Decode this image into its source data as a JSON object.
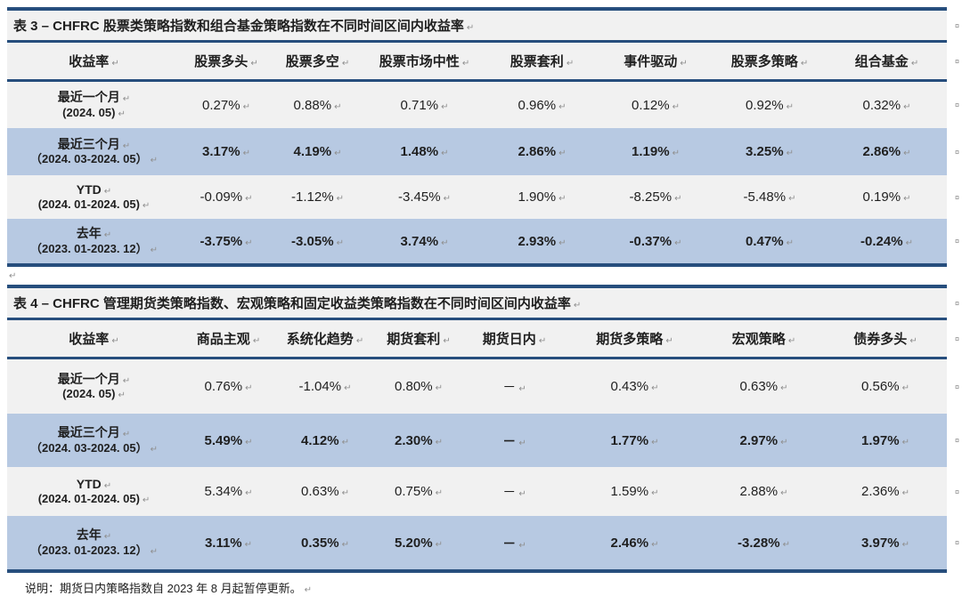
{
  "colors": {
    "border_navy": "#274e7d",
    "row_blue": "#b7c9e2",
    "row_gray": "#f1f1f1",
    "text": "#1f1f1f",
    "mark_gray": "#8f8f8f"
  },
  "marks": {
    "paragraph": "↵",
    "row_end": "¤"
  },
  "tables": [
    {
      "title": "表 3 – CHFRC 股票类策略指数和组合基金策略指数在不同时间区间内收益率",
      "columns": [
        "收益率",
        "股票多头",
        "股票多空",
        "股票市场中性",
        "股票套利",
        "事件驱动",
        "股票多策略",
        "组合基金"
      ],
      "rows": [
        {
          "label_line1": "最近一个月",
          "label_line2": "(2024. 05)",
          "bold": false,
          "values": [
            "0.27%",
            "0.88%",
            "0.71%",
            "0.96%",
            "0.12%",
            "0.92%",
            "0.32%"
          ]
        },
        {
          "label_line1": "最近三个月",
          "label_line2": "（2024. 03-2024. 05）",
          "bold": true,
          "values": [
            "3.17%",
            "4.19%",
            "1.48%",
            "2.86%",
            "1.19%",
            "3.25%",
            "2.86%"
          ]
        },
        {
          "label_line1": "YTD",
          "label_line2": "(2024. 01-2024. 05)",
          "bold": false,
          "values": [
            "-0.09%",
            "-1.12%",
            "-3.45%",
            "1.90%",
            "-8.25%",
            "-5.48%",
            "0.19%"
          ]
        },
        {
          "label_line1": "去年",
          "label_line2": "（2023. 01-2023. 12）",
          "bold": true,
          "values": [
            "-3.75%",
            "-3.05%",
            "3.74%",
            "2.93%",
            "-0.37%",
            "0.47%",
            "-0.24%"
          ]
        }
      ]
    },
    {
      "title": "表 4 – CHFRC 管理期货类策略指数、宏观策略和固定收益类策略指数在不同时间区间内收益率",
      "columns": [
        "收益率",
        "商品主观",
        "系统化趋势",
        "期货套利",
        "期货日内",
        "期货多策略",
        "宏观策略",
        "债券多头"
      ],
      "rows": [
        {
          "label_line1": "最近一个月",
          "label_line2": "(2024. 05)",
          "bold": false,
          "values": [
            "0.76%",
            "-1.04%",
            "0.80%",
            "－",
            "0.43%",
            "0.63%",
            "0.56%"
          ]
        },
        {
          "label_line1": "最近三个月",
          "label_line2": "（2024. 03-2024. 05）",
          "bold": true,
          "values": [
            "5.49%",
            "4.12%",
            "2.30%",
            "－",
            "1.77%",
            "2.97%",
            "1.97%"
          ]
        },
        {
          "label_line1": "YTD",
          "label_line2": "(2024. 01-2024. 05)",
          "bold": false,
          "values": [
            "5.34%",
            "0.63%",
            "0.75%",
            "－",
            "1.59%",
            "2.88%",
            "2.36%"
          ]
        },
        {
          "label_line1": "去年",
          "label_line2": "（2023. 01-2023. 12）",
          "bold": true,
          "values": [
            "3.11%",
            "0.35%",
            "5.20%",
            "－",
            "2.46%",
            "-3.28%",
            "3.97%"
          ]
        }
      ]
    }
  ],
  "footer": {
    "note": "说明：期货日内策略指数自 2023 年 8 月起暂停更新。"
  }
}
